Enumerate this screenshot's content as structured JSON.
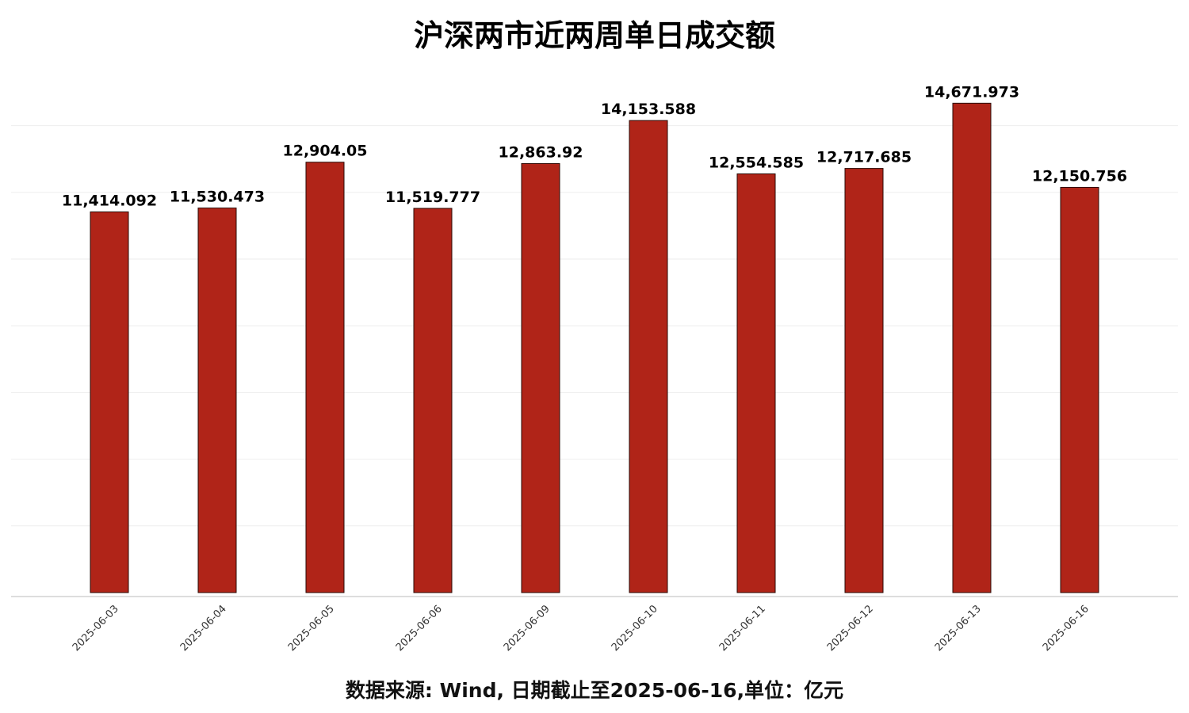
{
  "chart_data": {
    "type": "bar",
    "title": "沪深两市近两周单日成交额",
    "footer": "数据来源: Wind, 日期截止至2025-06-16,单位：亿元",
    "categories": [
      "2025-06-03",
      "2025-06-04",
      "2025-06-05",
      "2025-06-06",
      "2025-06-09",
      "2025-06-10",
      "2025-06-11",
      "2025-06-12",
      "2025-06-13",
      "2025-06-16"
    ],
    "values": [
      11414.092,
      11530.473,
      12904.05,
      11519.777,
      12863.92,
      14153.588,
      12554.585,
      12717.685,
      14671.973,
      12150.756
    ],
    "value_labels": [
      "11,414.092",
      "11,530.473",
      "12,904.05",
      "11,519.777",
      "12,863.92",
      "14,153.588",
      "12,554.585",
      "12,717.685",
      "14,671.973",
      "12,150.756"
    ],
    "xlabel": "",
    "ylabel": "",
    "ylim": [
      0,
      14000
    ],
    "grid": true,
    "bar_color": "#b02418",
    "bar_edge_color": "#2a0a06",
    "grid_color": "#eeeeee",
    "axis_color": "#bbbbbb"
  }
}
